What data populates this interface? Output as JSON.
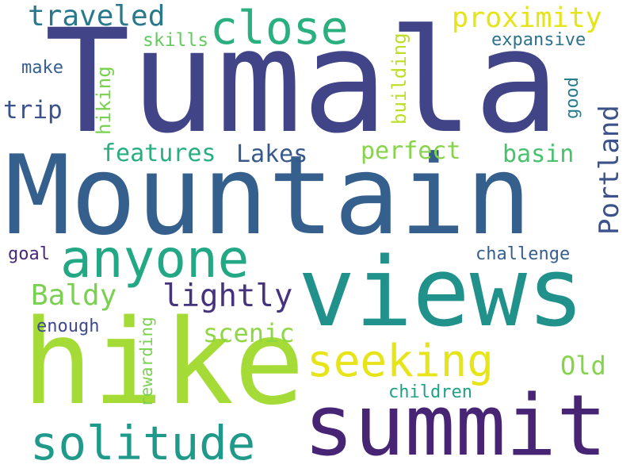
{
  "words": [
    {
      "text": "Tumala",
      "color": "#414487",
      "rotated": false
    },
    {
      "text": "Mountain",
      "color": "#355f8d",
      "rotated": false
    },
    {
      "text": "views",
      "color": "#21918c",
      "rotated": false
    },
    {
      "text": "hike",
      "color": "#a5db36",
      "rotated": false
    },
    {
      "text": "summit",
      "color": "#482475",
      "rotated": false
    },
    {
      "text": "anyone",
      "color": "#22a884",
      "rotated": false
    },
    {
      "text": "solitude",
      "color": "#1f9a8a",
      "rotated": false
    },
    {
      "text": "seeking",
      "color": "#e7e419",
      "rotated": false
    },
    {
      "text": "close",
      "color": "#2ab07f",
      "rotated": false
    },
    {
      "text": "traveled",
      "color": "#2a788e",
      "rotated": false
    },
    {
      "text": "proximity",
      "color": "#e5e419",
      "rotated": false
    },
    {
      "text": "lightly",
      "color": "#46337e",
      "rotated": false
    },
    {
      "text": "Baldy",
      "color": "#7ad151",
      "rotated": false
    },
    {
      "text": "Portland",
      "color": "#3b528b",
      "rotated": true
    },
    {
      "text": "Lakes",
      "color": "#38598c",
      "rotated": false
    },
    {
      "text": "features",
      "color": "#29af7f",
      "rotated": false
    },
    {
      "text": "perfect",
      "color": "#86d549",
      "rotated": false
    },
    {
      "text": "basin",
      "color": "#4ac16d",
      "rotated": false
    },
    {
      "text": "scenic",
      "color": "#8ed645",
      "rotated": false
    },
    {
      "text": "Old",
      "color": "#84d44b",
      "rotated": false
    },
    {
      "text": "trip",
      "color": "#3b528b",
      "rotated": false
    },
    {
      "text": "skills",
      "color": "#65cb5e",
      "rotated": false
    },
    {
      "text": "expansive",
      "color": "#2c728e",
      "rotated": false
    },
    {
      "text": "make",
      "color": "#355f8d",
      "rotated": false
    },
    {
      "text": "hiking",
      "color": "#7ad151",
      "rotated": true
    },
    {
      "text": "building",
      "color": "#bddf26",
      "rotated": true
    },
    {
      "text": "good",
      "color": "#287d8e",
      "rotated": true
    },
    {
      "text": "goal",
      "color": "#482878",
      "rotated": false
    },
    {
      "text": "challenge",
      "color": "#355f8d",
      "rotated": false
    },
    {
      "text": "enough",
      "color": "#3e4a89",
      "rotated": false
    },
    {
      "text": "rewarding",
      "color": "#7ad151",
      "rotated": true
    },
    {
      "text": "children",
      "color": "#1fa187",
      "rotated": false
    }
  ]
}
